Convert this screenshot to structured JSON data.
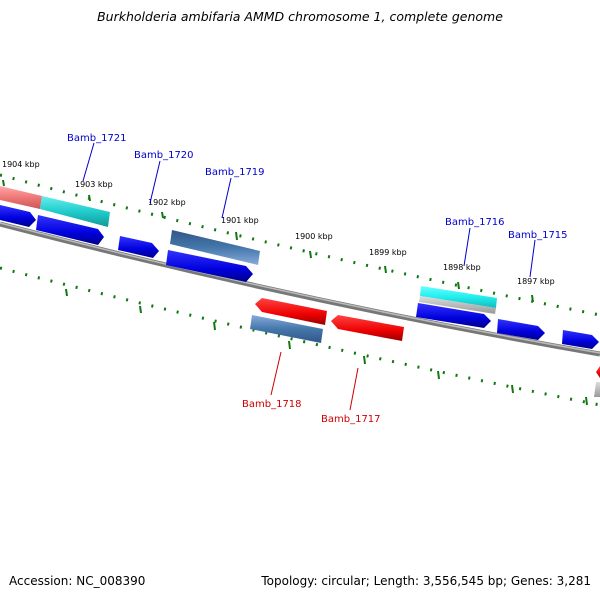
{
  "title": "Burkholderia ambifaria AMMD chromosome 1, complete genome",
  "footer": {
    "accession": "Accession: NC_008390",
    "summary": "Topology: circular; Length: 3,556,545 bp; Genes: 3,281"
  },
  "colors": {
    "forward_label": "#0000cc",
    "reverse_label": "#cc0000",
    "tick": "#117711",
    "backbone": "#7a7a7a",
    "forward_gene": "#0000ee",
    "reverse_gene": "#ee0000",
    "highlight_teal": "#22cccc",
    "highlight_steel": "#4477aa",
    "highlight_salmon": "#ee7777"
  },
  "scale_labels": [
    "1904 kbp",
    "1903 kbp",
    "1902 kbp",
    "1901 kbp",
    "1900 kbp",
    "1899 kbp",
    "1898 kbp",
    "1897 kbp"
  ],
  "forward_gene_labels": [
    "Bamb_1721",
    "Bamb_1720",
    "Bamb_1719",
    "Bamb_1716",
    "Bamb_1715"
  ],
  "reverse_gene_labels": [
    "Bamb_1718",
    "Bamb_1717"
  ]
}
